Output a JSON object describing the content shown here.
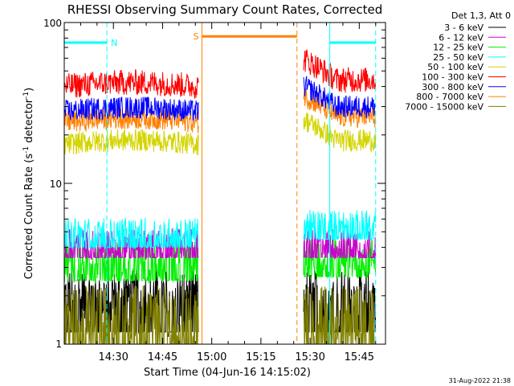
{
  "chart_data": {
    "type": "line",
    "title": "RHESSI Observing Summary Count Rates, Corrected",
    "xlabel": "Start Time (04-Jun-16 14:15:02)",
    "ylabel_main": "Corrected Count Rate (s",
    "ylabel_sup1": "-1",
    "ylabel_mid": " detector",
    "ylabel_sup2": "-1",
    "ylabel_end": ")",
    "y_scale": "log",
    "ylim": [
      1,
      100
    ],
    "y_ticks": [
      "1",
      "10",
      "100"
    ],
    "xlim_minutes": [
      0,
      98
    ],
    "x_ticks": [
      {
        "label": "14:30",
        "minute": 15
      },
      {
        "label": "14:45",
        "minute": 30
      },
      {
        "label": "15:00",
        "minute": 45
      },
      {
        "label": "15:15",
        "minute": 60
      },
      {
        "label": "15:30",
        "minute": 75
      },
      {
        "label": "15:45",
        "minute": 90
      }
    ],
    "legend_header": "Det 1,3, Att 0",
    "legend_position": "right",
    "series": [
      {
        "name": "3 - 6 keV",
        "color": "#000000",
        "level_seg1": 2.0,
        "level_seg2": 2.0
      },
      {
        "name": "6 - 12 keV",
        "color": "#cc00cc",
        "level_seg1": 4.3,
        "level_seg2": 4.3
      },
      {
        "name": "12 - 25 keV",
        "color": "#00ee00",
        "level_seg1": 3.4,
        "level_seg2": 3.6
      },
      {
        "name": "25 - 50 keV",
        "color": "#00ffff",
        "level_seg1": 5.0,
        "level_seg2": 5.6
      },
      {
        "name": "50 - 100 keV",
        "color": "#d4d400",
        "level_seg1": 17.5,
        "level_seg2": 18.5
      },
      {
        "name": "100 - 300 keV",
        "color": "#ff0000",
        "level_seg1": 40,
        "level_seg2": 44
      },
      {
        "name": "300 - 800 keV",
        "color": "#0000ff",
        "level_seg1": 28,
        "level_seg2": 30
      },
      {
        "name": "800 - 7000 keV",
        "color": "#ff8000",
        "level_seg1": 24,
        "level_seg2": 26
      },
      {
        "name": "7000 - 15000 keV",
        "color": "#808000",
        "level_seg1": 1.5,
        "level_seg2": 1.5
      }
    ],
    "data_intervals_minutes": [
      [
        0,
        41
      ],
      [
        73,
        95
      ]
    ],
    "night_marker": {
      "label": "N",
      "color": "#00ffff",
      "bars": [
        [
          0,
          13
        ],
        [
          81,
          95
        ]
      ],
      "level": 75,
      "dashes_minutes": [
        13,
        95
      ],
      "solid_minutes": [
        81
      ]
    },
    "saa_marker": {
      "label": "S",
      "color": "#ff8000",
      "bar": [
        42,
        71
      ],
      "level": 82,
      "solid_minutes": [
        42
      ],
      "dashes_minutes": [
        71
      ]
    },
    "timestamp": "31-Aug-2022 21:38"
  }
}
